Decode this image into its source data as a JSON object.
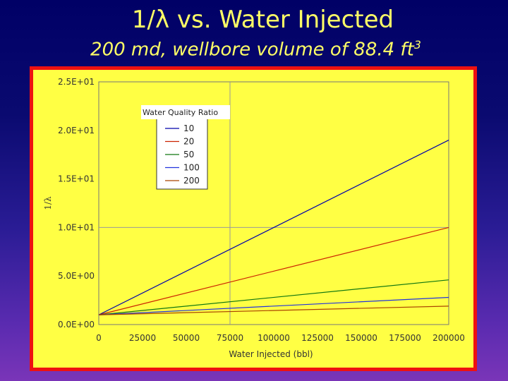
{
  "slide": {
    "title": "1/λ vs. Water Injected",
    "subtitle_text": "200 md, wellbore volume of 88.4 ft",
    "subtitle_sup": "3"
  },
  "colors": {
    "background_top": "#000066",
    "title": "#ffff66",
    "frame_border": "#ee1111",
    "plot_background": "#ffff44",
    "axis_text": "#333333"
  },
  "chart_data": {
    "type": "line",
    "title": "",
    "xlabel": "Water Injected (bbl)",
    "ylabel": "1/λ",
    "xlim": [
      0,
      200000
    ],
    "ylim": [
      0,
      25
    ],
    "x_ticks": [
      0,
      25000,
      50000,
      75000,
      100000,
      125000,
      150000,
      175000,
      200000
    ],
    "x_tick_labels": [
      "0",
      "25000",
      "50000",
      "75000",
      "100000",
      "125000",
      "150000",
      "175000",
      "200000"
    ],
    "y_ticks": [
      0,
      5,
      10,
      15,
      20,
      25
    ],
    "y_tick_labels": [
      "0.0E+00",
      "5.0E+00",
      "1.0E+01",
      "1.5E+01",
      "2.0E+01",
      "2.5E+01"
    ],
    "grid": "major lines at x=75000 and y=10",
    "legend": {
      "title": "Water Quality Ratio",
      "position": "top-left"
    },
    "series": [
      {
        "name": "10",
        "color": "#0000aa",
        "x": [
          0,
          200000
        ],
        "y": [
          1.0,
          19.0
        ]
      },
      {
        "name": "20",
        "color": "#cc2200",
        "x": [
          0,
          200000
        ],
        "y": [
          1.0,
          10.0
        ]
      },
      {
        "name": "50",
        "color": "#117711",
        "x": [
          0,
          200000
        ],
        "y": [
          1.0,
          4.6
        ]
      },
      {
        "name": "100",
        "color": "#2233dd",
        "x": [
          0,
          200000
        ],
        "y": [
          1.0,
          2.8
        ]
      },
      {
        "name": "200",
        "color": "#aa4400",
        "x": [
          0,
          200000
        ],
        "y": [
          1.0,
          1.9
        ]
      }
    ]
  }
}
